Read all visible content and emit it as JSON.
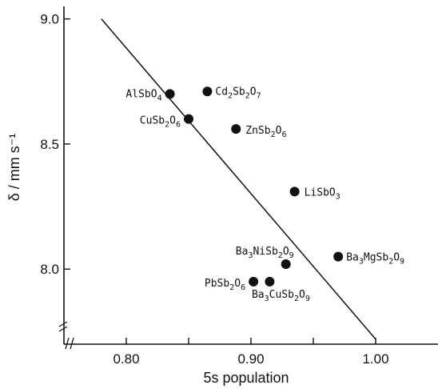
{
  "chart_data": {
    "type": "scatter",
    "xlabel": "5s population",
    "ylabel": "δ / mm s⁻¹",
    "xlim": [
      0.75,
      1.05
    ],
    "ylim": [
      7.7,
      9.05
    ],
    "x_ticks": [
      "0.80",
      "0.85",
      "0.90",
      "0.95",
      "1.00"
    ],
    "x_tick_values": [
      0.8,
      0.85,
      0.9,
      0.95,
      1.0
    ],
    "x_tick_labels": [
      "0.80",
      "",
      "0.90",
      "",
      "1.00"
    ],
    "y_tick_values": [
      8.0,
      8.5,
      9.0
    ],
    "y_tick_labels": [
      "8.0",
      "8.5",
      "9.0"
    ],
    "fit_line": {
      "x": [
        0.78,
        1.0
      ],
      "y": [
        9.0,
        7.72
      ]
    },
    "points": [
      {
        "name": "AlSbO4",
        "x": 0.835,
        "y": 8.7,
        "label_parts": [
          [
            "AlSbO",
            ""
          ],
          [
            "4",
            "sub"
          ]
        ],
        "label_anchor": "end"
      },
      {
        "name": "Cd2Sb2O7",
        "x": 0.865,
        "y": 8.71,
        "label_parts": [
          [
            "Cd",
            ""
          ],
          [
            "2",
            "sub"
          ],
          [
            "Sb",
            ""
          ],
          [
            "2",
            "sub"
          ],
          [
            "O",
            ""
          ],
          [
            "7",
            "sub"
          ]
        ],
        "label_anchor": "start"
      },
      {
        "name": "CuSb2O6",
        "x": 0.85,
        "y": 8.6,
        "label_parts": [
          [
            "CuSb",
            ""
          ],
          [
            "2",
            "sub"
          ],
          [
            "O",
            ""
          ],
          [
            "6",
            "sub"
          ]
        ],
        "label_anchor": "end"
      },
      {
        "name": "ZnSb2O6",
        "x": 0.888,
        "y": 8.56,
        "label_parts": [
          [
            "ZnSb",
            ""
          ],
          [
            "2",
            "sub"
          ],
          [
            "O",
            ""
          ],
          [
            "6",
            "sub"
          ]
        ],
        "label_anchor": "start"
      },
      {
        "name": "LiSbO3",
        "x": 0.935,
        "y": 8.31,
        "label_parts": [
          [
            "LiSbO",
            ""
          ],
          [
            "3",
            "sub"
          ]
        ],
        "label_anchor": "start"
      },
      {
        "name": "Ba3NiSb2O9",
        "x": 0.928,
        "y": 8.02,
        "label_parts": [
          [
            "Ba",
            ""
          ],
          [
            "3",
            "sub"
          ],
          [
            "NiSb",
            ""
          ],
          [
            "2",
            "sub"
          ],
          [
            "O",
            ""
          ],
          [
            "9",
            "sub"
          ]
        ],
        "label_anchor": "end"
      },
      {
        "name": "Ba3MgSb2O9",
        "x": 0.97,
        "y": 8.05,
        "label_parts": [
          [
            "Ba",
            ""
          ],
          [
            "3",
            "sub"
          ],
          [
            "MgSb",
            ""
          ],
          [
            "2",
            "sub"
          ],
          [
            "O",
            ""
          ],
          [
            "9",
            "sub"
          ]
        ],
        "label_anchor": "start"
      },
      {
        "name": "PbSb2O6",
        "x": 0.902,
        "y": 7.95,
        "label_parts": [
          [
            "PbSb",
            ""
          ],
          [
            "2",
            "sub"
          ],
          [
            "O",
            ""
          ],
          [
            "6",
            "sub"
          ]
        ],
        "label_anchor": "end"
      },
      {
        "name": "Ba3CuSb2O9",
        "x": 0.915,
        "y": 7.95,
        "label_parts": [
          [
            "Ba",
            ""
          ],
          [
            "3",
            "sub"
          ],
          [
            "CuSb",
            ""
          ],
          [
            "2",
            "sub"
          ],
          [
            "O",
            ""
          ],
          [
            "9",
            "sub"
          ]
        ],
        "label_anchor": "middle"
      }
    ],
    "grid": false,
    "legend": "none"
  }
}
